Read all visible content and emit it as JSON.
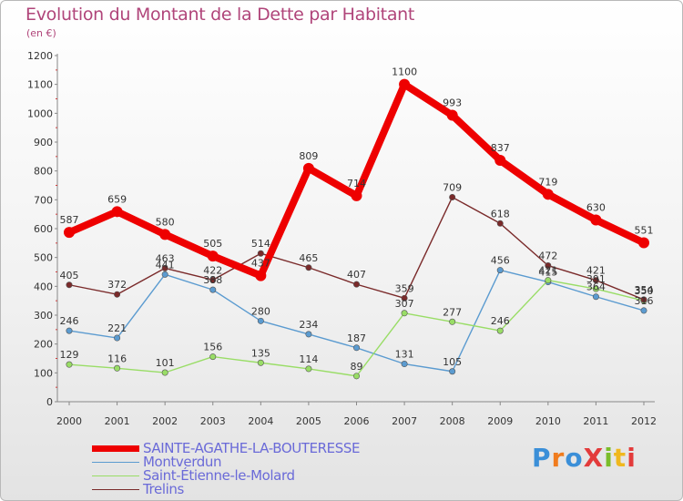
{
  "header": {
    "title": "Evolution du Montant de la Dette par Habitant",
    "unit_note": "(en €)"
  },
  "logo": {
    "text": "ProXiti",
    "letter_colors": [
      "#3b8fd8",
      "#f07c1e",
      "#3b8fd8",
      "#e33b3b",
      "#7bbd2a",
      "#f0b81e",
      "#e33b3b"
    ]
  },
  "chart_data": {
    "type": "line",
    "title": "Evolution du Montant de la Dette par Habitant",
    "subtitle": "(en €)",
    "xlabel": "",
    "ylabel": "",
    "x": [
      "2000",
      "2001",
      "2002",
      "2003",
      "2004",
      "2005",
      "2006",
      "2007",
      "2008",
      "2009",
      "2010",
      "2011",
      "2012"
    ],
    "ylim": [
      0,
      1200
    ],
    "yticks": [
      0,
      100,
      200,
      300,
      400,
      500,
      600,
      700,
      800,
      900,
      1000,
      1100,
      1200
    ],
    "grid": false,
    "legend_position": "bottom-left",
    "series": [
      {
        "name": "SAINTE-AGATHE-LA-BOUTERESSE",
        "color": "#ee0000",
        "values": [
          587,
          659,
          580,
          505,
          437,
          809,
          714,
          1100,
          993,
          837,
          719,
          630,
          551
        ],
        "labels": [
          "587",
          "659",
          "580",
          "505",
          "437",
          "809",
          "714",
          "1100",
          "993",
          "837",
          "719",
          "630",
          "551"
        ]
      },
      {
        "name": "Montverdun",
        "color": "#5b9bd0",
        "values": [
          246,
          221,
          441,
          388,
          280,
          234,
          187,
          131,
          105,
          456,
          415,
          364,
          316
        ],
        "labels": [
          "246",
          "221",
          "441",
          "388",
          "280",
          "234",
          "187",
          "131",
          "105",
          "456",
          "415",
          "364",
          "316"
        ]
      },
      {
        "name": "Saint-Étienne-le-Molard",
        "color": "#99dd66",
        "values": [
          129,
          116,
          101,
          156,
          135,
          114,
          89,
          307,
          277,
          246,
          421,
          391,
          350
        ],
        "labels": [
          "129",
          "116",
          "101",
          "156",
          "135",
          "114",
          "89",
          "307",
          "277",
          "246",
          "421",
          "391",
          "350"
        ]
      },
      {
        "name": "Trelins",
        "color": "#7a2a2a",
        "values": [
          405,
          372,
          463,
          422,
          514,
          465,
          407,
          359,
          709,
          618,
          472,
          421,
          354
        ],
        "labels": [
          "405",
          "372",
          "463",
          "422",
          "514",
          "465",
          "407",
          "359",
          "709",
          "618",
          "472",
          "421",
          "354"
        ]
      }
    ]
  }
}
